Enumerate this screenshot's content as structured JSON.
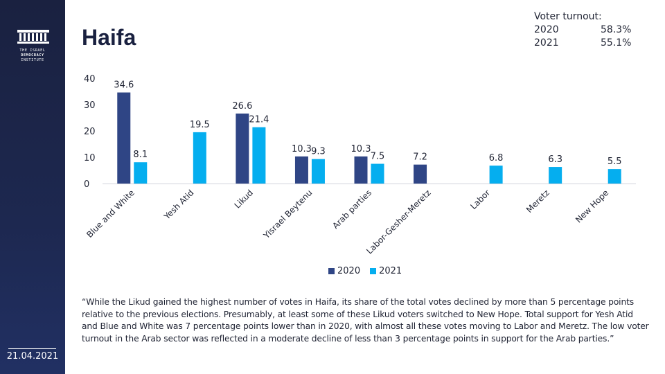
{
  "sidebar": {
    "logo_lines": [
      "THE ISRAEL",
      "DEMOCRACY",
      "INSTITUTE"
    ],
    "date": "21.04.2021"
  },
  "header": {
    "title": "Haifa"
  },
  "turnout": {
    "label": "Voter turnout:",
    "rows": [
      {
        "year": "2020",
        "value": "58.3%"
      },
      {
        "year": "2021",
        "value": "55.1%"
      }
    ]
  },
  "quote": "“While the Likud gained the highest number of votes in Haifa, its share of the total votes declined by more than 5 percentage points relative to the previous elections. Presumably, at least some of these Likud voters switched to New Hope. Total support for Yesh Atid and Blue and White was 7 percentage points lower than in 2020, with almost all these votes moving to Labor and Meretz. The low voter turnout in the Arab sector was reflected in a moderate decline of less than 3 percentage points in support for the Arab parties.”",
  "chart_data": {
    "type": "bar",
    "title": "",
    "xlabel": "",
    "ylabel": "",
    "ylim": [
      0,
      40
    ],
    "yticks": [
      0,
      10,
      20,
      30,
      40
    ],
    "grid": false,
    "legend_position": "bottom",
    "categories": [
      "Blue and White",
      "Yesh Atid",
      "Likud",
      "Yisrael Beytenu",
      "Arab parties",
      "Labor-Gesher-Meretz",
      "Labor",
      "Meretz",
      "New Hope"
    ],
    "series": [
      {
        "name": "2020",
        "color": "#2f4585",
        "values": [
          34.6,
          null,
          26.6,
          10.3,
          10.3,
          7.2,
          null,
          null,
          null
        ]
      },
      {
        "name": "2021",
        "color": "#05aeef",
        "values": [
          8.1,
          19.5,
          21.4,
          9.3,
          7.5,
          null,
          6.8,
          6.3,
          5.5
        ]
      }
    ]
  }
}
